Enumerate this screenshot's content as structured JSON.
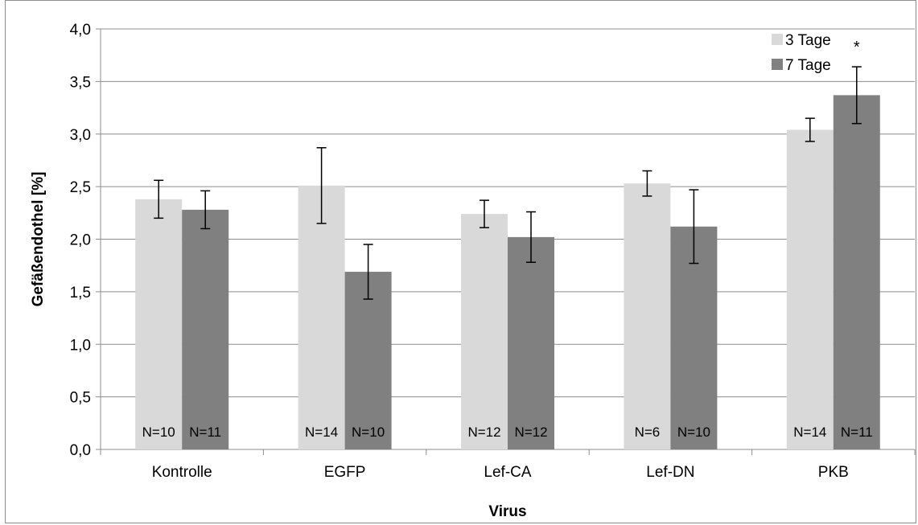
{
  "chart_data": {
    "type": "bar",
    "title": "",
    "xlabel": "Virus",
    "ylabel": "Gefäßendothel [%]",
    "ylim": [
      0,
      4
    ],
    "yticks": [
      "0,0",
      "0,5",
      "1,0",
      "1,5",
      "2,0",
      "2,5",
      "3,0",
      "3,5",
      "4,0"
    ],
    "grid": true,
    "legend_position": "top-right",
    "categories": [
      "Kontrolle",
      "EGFP",
      "Lef-CA",
      "Lef-DN",
      "PKB"
    ],
    "series": [
      {
        "name": "3 Tage",
        "color": "#d9d9d9",
        "values": [
          2.38,
          2.51,
          2.24,
          2.53,
          3.04
        ],
        "error": [
          0.18,
          0.36,
          0.13,
          0.12,
          0.11
        ],
        "n_labels": [
          "N=10",
          "N=14",
          "N=12",
          "N=6",
          "N=14"
        ]
      },
      {
        "name": "7 Tage",
        "color": "#808080",
        "values": [
          2.28,
          1.69,
          2.02,
          2.12,
          3.37
        ],
        "error": [
          0.18,
          0.26,
          0.24,
          0.35,
          0.27
        ],
        "n_labels": [
          "N=11",
          "N=10",
          "N=12",
          "N=10",
          "N=11"
        ]
      }
    ],
    "annotations": [
      {
        "category": "PKB",
        "series": "7 Tage",
        "text": "*"
      }
    ]
  }
}
